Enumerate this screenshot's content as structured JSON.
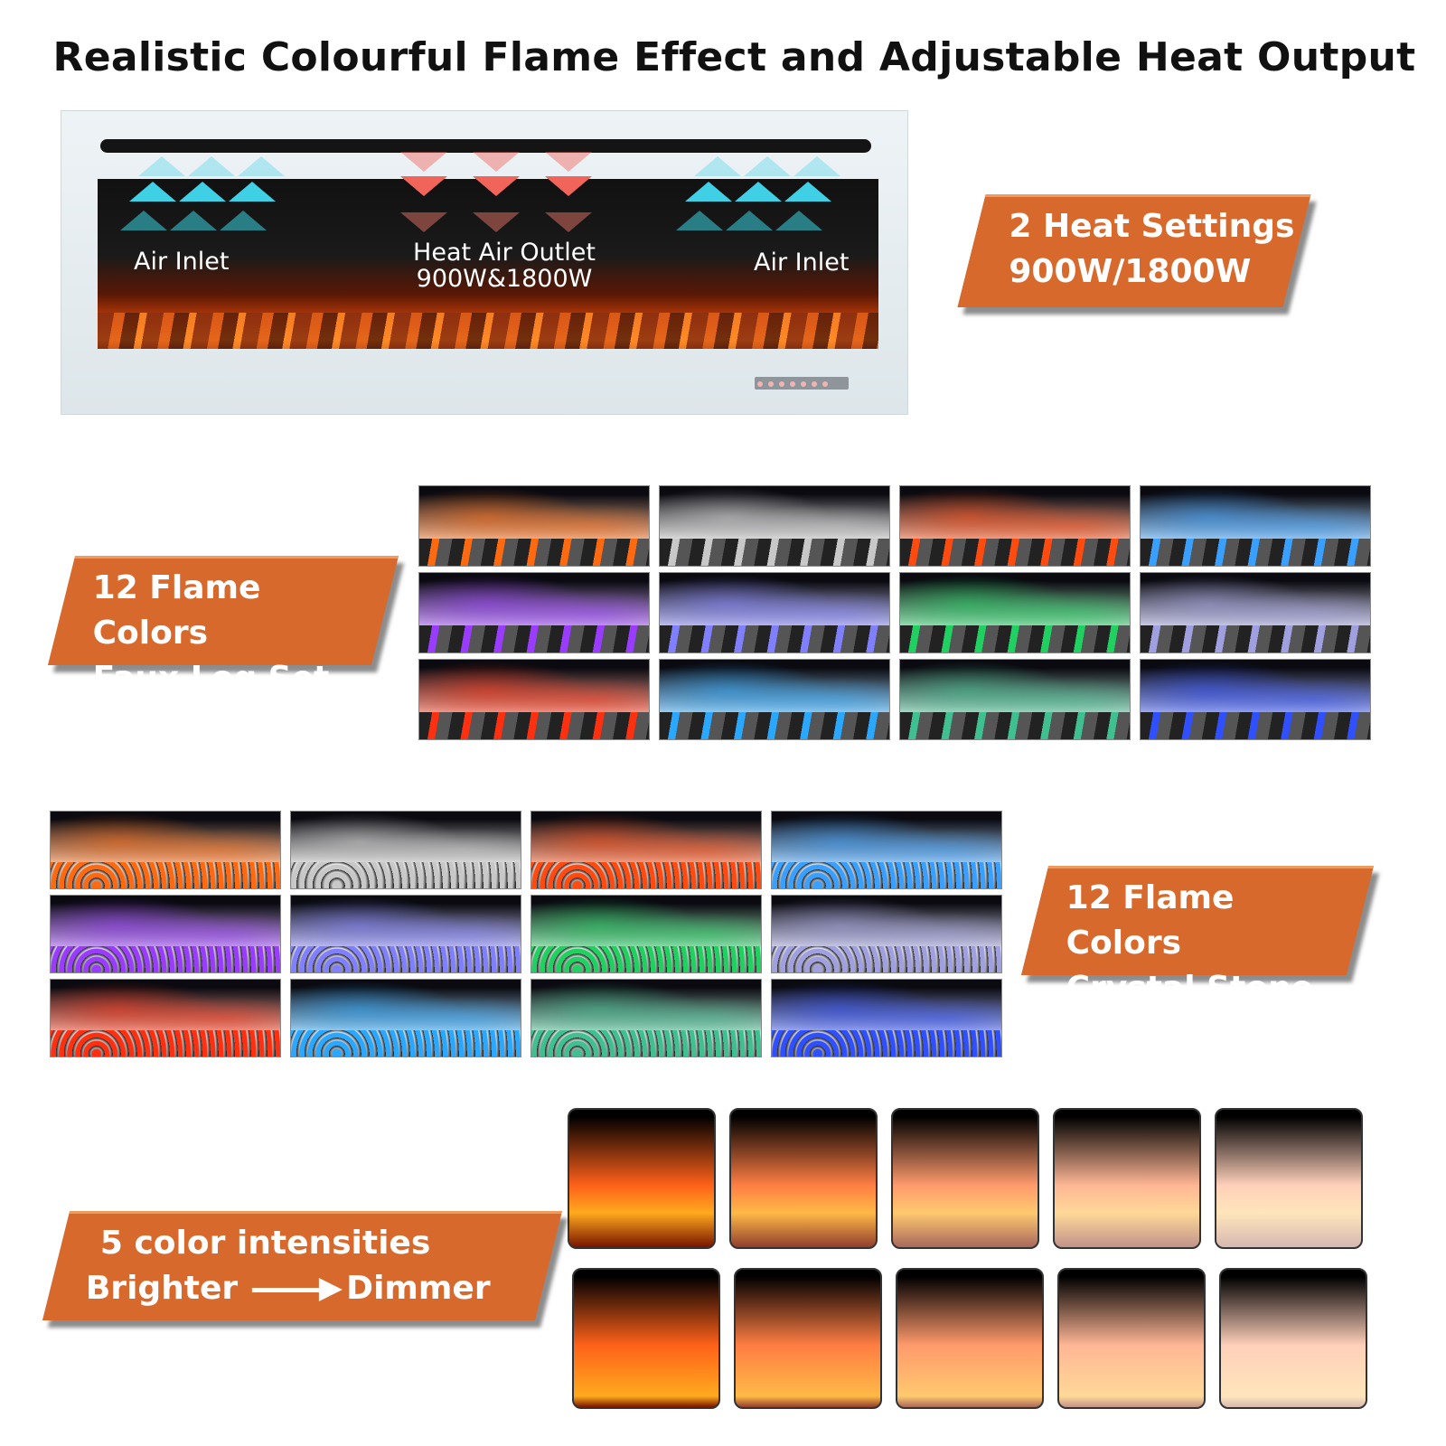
{
  "title": "Realistic Colourful Flame Effect and Adjustable Heat Output",
  "fireplace": {
    "left_label": "Air Inlet",
    "center_label_1": "Heat Air Outlet",
    "center_label_2": "900W&1800W",
    "right_label": "Air Inlet",
    "inlet_color": "#3fd0e6",
    "outlet_color": "#f0645a"
  },
  "badges": {
    "heat": {
      "line1": "2 Heat Settings",
      "line2": "900W/1800W"
    },
    "log": {
      "line1": "12 Flame Colors",
      "line2": "Faux Log Set"
    },
    "crystal": {
      "line1": "12 Flame Colors",
      "line2": "Crystal Stone"
    },
    "intensity": {
      "line1": "5 color intensities",
      "from": "Brighter",
      "to": "Dimmer"
    }
  },
  "accent_color": "#d8692c",
  "flame_colors": [
    "#ff6a10",
    "#c8c8c8",
    "#ff4a10",
    "#3aa0ff",
    "#9a3cff",
    "#8080ff",
    "#20d060",
    "#a0a0e0",
    "#ff3010",
    "#2aa8ff",
    "#40c090",
    "#3050ff"
  ],
  "intensity_levels": [
    1.0,
    0.82,
    0.64,
    0.46,
    0.3
  ]
}
